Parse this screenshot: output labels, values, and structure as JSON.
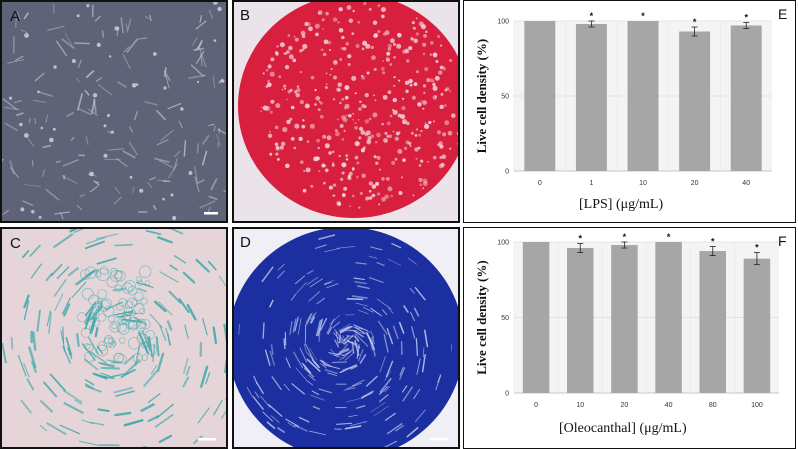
{
  "panels": {
    "a": {
      "label": "A",
      "colors": {
        "base": "#5f6378",
        "cell": "#c9cbd6"
      }
    },
    "b": {
      "label": "B",
      "colors": {
        "base": "#d8203e",
        "light": "#f3dde3",
        "border": "#eae4ea"
      }
    },
    "c": {
      "label": "C",
      "colors": {
        "base": "#e6d5d8",
        "stain": "#3aa8aa"
      }
    },
    "d": {
      "label": "D",
      "colors": {
        "base": "#1b2fa0",
        "light": "#c9cff0"
      }
    }
  },
  "chart_data": [
    {
      "panel_label": "E",
      "type": "bar",
      "categories": [
        "0",
        "1",
        "10",
        "20",
        "40"
      ],
      "values": [
        100,
        98,
        100,
        93,
        97
      ],
      "errors": [
        0,
        2,
        0,
        3,
        2
      ],
      "significance": [
        false,
        true,
        true,
        true,
        true
      ],
      "ylabel": "Live cell density (%)",
      "xlabel": "[LPS] (μg/mL)",
      "ylim": [
        0,
        100
      ],
      "yticks": [
        "0",
        "50",
        "100"
      ],
      "grid": true,
      "bar_color": "#a6a6a6"
    },
    {
      "panel_label": "F",
      "type": "bar",
      "categories": [
        "0",
        "10",
        "20",
        "40",
        "80",
        "100"
      ],
      "values": [
        100,
        96,
        98,
        100,
        94,
        89
      ],
      "errors": [
        0,
        3,
        2,
        0,
        3,
        4
      ],
      "significance": [
        false,
        true,
        true,
        true,
        true,
        true
      ],
      "ylabel": "Live cell density (%)",
      "xlabel": "[Oleocanthal] (μg/mL)",
      "ylim": [
        0,
        100
      ],
      "yticks": [
        "0",
        "50",
        "100"
      ],
      "grid": true,
      "bar_color": "#a6a6a6"
    }
  ]
}
